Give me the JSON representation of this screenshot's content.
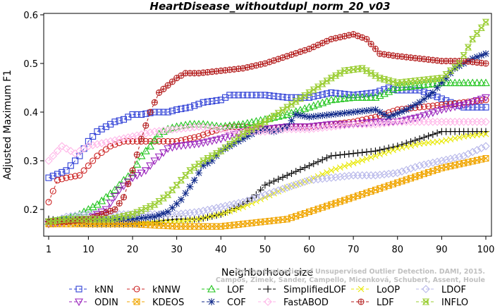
{
  "chart_data": {
    "type": "line",
    "title": "HeartDisease_withoutdupl_norm_20_v03",
    "xlabel": "Neighborhood size",
    "ylabel": "Adjusted Maximum F1",
    "xlim": [
      1,
      100
    ],
    "ylim": [
      0.15,
      0.6
    ],
    "x_ticks": [
      1,
      10,
      20,
      30,
      40,
      50,
      60,
      70,
      80,
      90,
      100
    ],
    "y_ticks": [
      0.2,
      0.3,
      0.4,
      0.5,
      0.6
    ],
    "grid": false,
    "legend_placement": "bottom",
    "watermark": [
      "Campos, Zimek, Sander, Campello, Micenková, Schubert, Assent, Houle",
      "On the Evaluation of Unsupervised Outlier Detection. DAMI, 2015."
    ],
    "series": [
      {
        "name": "kNN",
        "color": "#2e3fd6",
        "marker": "square",
        "line": "dashed",
        "points": [
          [
            1,
            0.265
          ],
          [
            5,
            0.28
          ],
          [
            8,
            0.31
          ],
          [
            10,
            0.34
          ],
          [
            12,
            0.36
          ],
          [
            14,
            0.37
          ],
          [
            16,
            0.38
          ],
          [
            18,
            0.385
          ],
          [
            20,
            0.395
          ],
          [
            22,
            0.395
          ],
          [
            25,
            0.4
          ],
          [
            28,
            0.4
          ],
          [
            30,
            0.405
          ],
          [
            33,
            0.41
          ],
          [
            36,
            0.42
          ],
          [
            40,
            0.425
          ],
          [
            42,
            0.435
          ],
          [
            45,
            0.435
          ],
          [
            50,
            0.435
          ],
          [
            55,
            0.43
          ],
          [
            60,
            0.43
          ],
          [
            65,
            0.44
          ],
          [
            70,
            0.435
          ],
          [
            75,
            0.44
          ],
          [
            78,
            0.45
          ],
          [
            80,
            0.445
          ],
          [
            85,
            0.445
          ],
          [
            88,
            0.435
          ],
          [
            92,
            0.42
          ],
          [
            95,
            0.41
          ],
          [
            100,
            0.41
          ]
        ]
      },
      {
        "name": "kNNW",
        "color": "#cc2424",
        "marker": "circle",
        "line": "dashed",
        "points": [
          [
            1,
            0.215
          ],
          [
            3,
            0.26
          ],
          [
            5,
            0.265
          ],
          [
            8,
            0.27
          ],
          [
            10,
            0.29
          ],
          [
            12,
            0.31
          ],
          [
            15,
            0.33
          ],
          [
            18,
            0.34
          ],
          [
            25,
            0.34
          ],
          [
            30,
            0.34
          ],
          [
            35,
            0.35
          ],
          [
            38,
            0.36
          ],
          [
            42,
            0.37
          ],
          [
            45,
            0.37
          ],
          [
            50,
            0.365
          ],
          [
            55,
            0.37
          ],
          [
            60,
            0.37
          ],
          [
            65,
            0.375
          ],
          [
            70,
            0.38
          ],
          [
            75,
            0.39
          ],
          [
            80,
            0.405
          ],
          [
            85,
            0.41
          ],
          [
            90,
            0.415
          ],
          [
            95,
            0.42
          ],
          [
            100,
            0.425
          ]
        ]
      },
      {
        "name": "LOF",
        "color": "#22c41e",
        "marker": "triangle-up",
        "line": "dashed",
        "points": [
          [
            1,
            0.175
          ],
          [
            5,
            0.18
          ],
          [
            8,
            0.19
          ],
          [
            10,
            0.2
          ],
          [
            12,
            0.21
          ],
          [
            14,
            0.225
          ],
          [
            16,
            0.24
          ],
          [
            18,
            0.26
          ],
          [
            20,
            0.275
          ],
          [
            22,
            0.31
          ],
          [
            24,
            0.33
          ],
          [
            26,
            0.355
          ],
          [
            28,
            0.365
          ],
          [
            30,
            0.37
          ],
          [
            33,
            0.375
          ],
          [
            36,
            0.375
          ],
          [
            40,
            0.37
          ],
          [
            45,
            0.375
          ],
          [
            50,
            0.385
          ],
          [
            55,
            0.395
          ],
          [
            60,
            0.41
          ],
          [
            65,
            0.425
          ],
          [
            70,
            0.43
          ],
          [
            75,
            0.43
          ],
          [
            80,
            0.45
          ],
          [
            85,
            0.455
          ],
          [
            90,
            0.46
          ],
          [
            95,
            0.46
          ],
          [
            100,
            0.46
          ]
        ]
      },
      {
        "name": "SimplifiedLOF",
        "color": "#000000",
        "marker": "plus",
        "line": "dashed",
        "points": [
          [
            1,
            0.18
          ],
          [
            5,
            0.175
          ],
          [
            10,
            0.17
          ],
          [
            15,
            0.17
          ],
          [
            20,
            0.17
          ],
          [
            25,
            0.175
          ],
          [
            30,
            0.18
          ],
          [
            35,
            0.18
          ],
          [
            40,
            0.19
          ],
          [
            45,
            0.21
          ],
          [
            48,
            0.23
          ],
          [
            50,
            0.25
          ],
          [
            55,
            0.27
          ],
          [
            60,
            0.29
          ],
          [
            65,
            0.31
          ],
          [
            70,
            0.315
          ],
          [
            75,
            0.32
          ],
          [
            80,
            0.33
          ],
          [
            85,
            0.345
          ],
          [
            90,
            0.36
          ],
          [
            95,
            0.36
          ],
          [
            100,
            0.36
          ]
        ]
      },
      {
        "name": "LoOP",
        "color": "#e8e800",
        "marker": "x",
        "line": "dashed",
        "points": [
          [
            1,
            0.17
          ],
          [
            10,
            0.17
          ],
          [
            20,
            0.17
          ],
          [
            30,
            0.175
          ],
          [
            35,
            0.18
          ],
          [
            40,
            0.19
          ],
          [
            45,
            0.205
          ],
          [
            50,
            0.225
          ],
          [
            55,
            0.245
          ],
          [
            60,
            0.26
          ],
          [
            65,
            0.28
          ],
          [
            70,
            0.295
          ],
          [
            75,
            0.31
          ],
          [
            80,
            0.325
          ],
          [
            85,
            0.335
          ],
          [
            90,
            0.34
          ],
          [
            95,
            0.35
          ],
          [
            100,
            0.355
          ]
        ]
      },
      {
        "name": "LDOF",
        "color": "#b8b8ea",
        "marker": "diamond",
        "line": "dashed",
        "points": [
          [
            1,
            0.17
          ],
          [
            5,
            0.185
          ],
          [
            10,
            0.19
          ],
          [
            15,
            0.19
          ],
          [
            20,
            0.19
          ],
          [
            25,
            0.19
          ],
          [
            30,
            0.19
          ],
          [
            35,
            0.195
          ],
          [
            40,
            0.205
          ],
          [
            45,
            0.215
          ],
          [
            50,
            0.23
          ],
          [
            55,
            0.245
          ],
          [
            60,
            0.26
          ],
          [
            65,
            0.265
          ],
          [
            70,
            0.27
          ],
          [
            75,
            0.27
          ],
          [
            80,
            0.275
          ],
          [
            85,
            0.29
          ],
          [
            90,
            0.3
          ],
          [
            95,
            0.31
          ],
          [
            100,
            0.33
          ]
        ]
      },
      {
        "name": "ODIN",
        "color": "#9922bb",
        "marker": "triangle-down",
        "line": "dashed",
        "points": [
          [
            1,
            0.17
          ],
          [
            5,
            0.175
          ],
          [
            10,
            0.18
          ],
          [
            14,
            0.2
          ],
          [
            17,
            0.24
          ],
          [
            20,
            0.265
          ],
          [
            23,
            0.28
          ],
          [
            25,
            0.3
          ],
          [
            28,
            0.325
          ],
          [
            30,
            0.33
          ],
          [
            35,
            0.335
          ],
          [
            40,
            0.345
          ],
          [
            45,
            0.36
          ],
          [
            50,
            0.365
          ],
          [
            55,
            0.37
          ],
          [
            60,
            0.37
          ],
          [
            65,
            0.375
          ],
          [
            70,
            0.375
          ],
          [
            75,
            0.38
          ],
          [
            80,
            0.38
          ],
          [
            85,
            0.39
          ],
          [
            90,
            0.405
          ],
          [
            95,
            0.415
          ],
          [
            100,
            0.43
          ]
        ]
      },
      {
        "name": "KDEOS",
        "color": "#f0a500",
        "marker": "square-x",
        "line": "dashed",
        "points": [
          [
            1,
            0.17
          ],
          [
            10,
            0.17
          ],
          [
            20,
            0.17
          ],
          [
            30,
            0.165
          ],
          [
            40,
            0.165
          ],
          [
            45,
            0.17
          ],
          [
            50,
            0.175
          ],
          [
            55,
            0.18
          ],
          [
            60,
            0.195
          ],
          [
            65,
            0.21
          ],
          [
            70,
            0.225
          ],
          [
            75,
            0.24
          ],
          [
            80,
            0.255
          ],
          [
            85,
            0.27
          ],
          [
            90,
            0.285
          ],
          [
            95,
            0.295
          ],
          [
            100,
            0.305
          ]
        ]
      },
      {
        "name": "COF",
        "color": "#102a8a",
        "marker": "asterisk",
        "line": "dashed",
        "points": [
          [
            1,
            0.175
          ],
          [
            5,
            0.18
          ],
          [
            10,
            0.18
          ],
          [
            15,
            0.18
          ],
          [
            20,
            0.18
          ],
          [
            25,
            0.185
          ],
          [
            28,
            0.195
          ],
          [
            31,
            0.22
          ],
          [
            34,
            0.26
          ],
          [
            36,
            0.29
          ],
          [
            38,
            0.3
          ],
          [
            40,
            0.32
          ],
          [
            42,
            0.33
          ],
          [
            45,
            0.345
          ],
          [
            48,
            0.36
          ],
          [
            50,
            0.365
          ],
          [
            52,
            0.36
          ],
          [
            55,
            0.37
          ],
          [
            57,
            0.395
          ],
          [
            60,
            0.39
          ],
          [
            65,
            0.395
          ],
          [
            70,
            0.4
          ],
          [
            75,
            0.405
          ],
          [
            78,
            0.39
          ],
          [
            82,
            0.405
          ],
          [
            85,
            0.42
          ],
          [
            88,
            0.44
          ],
          [
            90,
            0.46
          ],
          [
            93,
            0.49
          ],
          [
            97,
            0.51
          ],
          [
            100,
            0.52
          ]
        ]
      },
      {
        "name": "FastABOD",
        "color": "#ffb6e8",
        "marker": "diamond",
        "line": "dashed",
        "points": [
          [
            1,
            0.3
          ],
          [
            4,
            0.33
          ],
          [
            7,
            0.315
          ],
          [
            10,
            0.33
          ],
          [
            15,
            0.34
          ],
          [
            20,
            0.35
          ],
          [
            25,
            0.36
          ],
          [
            30,
            0.365
          ],
          [
            35,
            0.37
          ],
          [
            40,
            0.365
          ],
          [
            45,
            0.36
          ],
          [
            50,
            0.36
          ],
          [
            55,
            0.365
          ],
          [
            60,
            0.365
          ],
          [
            65,
            0.37
          ],
          [
            70,
            0.375
          ],
          [
            75,
            0.375
          ],
          [
            80,
            0.38
          ],
          [
            85,
            0.38
          ],
          [
            90,
            0.38
          ],
          [
            95,
            0.38
          ],
          [
            100,
            0.38
          ]
        ]
      },
      {
        "name": "LDF",
        "color": "#b41e1e",
        "marker": "circle-plus",
        "line": "dashed",
        "points": [
          [
            1,
            0.175
          ],
          [
            5,
            0.175
          ],
          [
            10,
            0.18
          ],
          [
            13,
            0.19
          ],
          [
            16,
            0.2
          ],
          [
            18,
            0.225
          ],
          [
            20,
            0.28
          ],
          [
            22,
            0.345
          ],
          [
            24,
            0.4
          ],
          [
            26,
            0.44
          ],
          [
            28,
            0.455
          ],
          [
            30,
            0.47
          ],
          [
            32,
            0.48
          ],
          [
            35,
            0.48
          ],
          [
            40,
            0.485
          ],
          [
            45,
            0.49
          ],
          [
            50,
            0.5
          ],
          [
            55,
            0.515
          ],
          [
            60,
            0.53
          ],
          [
            65,
            0.55
          ],
          [
            70,
            0.56
          ],
          [
            73,
            0.55
          ],
          [
            76,
            0.52
          ],
          [
            80,
            0.515
          ],
          [
            85,
            0.51
          ],
          [
            90,
            0.505
          ],
          [
            95,
            0.505
          ],
          [
            100,
            0.5
          ]
        ]
      },
      {
        "name": "INFLO",
        "color": "#9acd32",
        "marker": "hourglass",
        "line": "dashed",
        "points": [
          [
            1,
            0.175
          ],
          [
            5,
            0.18
          ],
          [
            10,
            0.18
          ],
          [
            15,
            0.18
          ],
          [
            20,
            0.19
          ],
          [
            25,
            0.21
          ],
          [
            28,
            0.23
          ],
          [
            30,
            0.25
          ],
          [
            33,
            0.28
          ],
          [
            36,
            0.3
          ],
          [
            40,
            0.32
          ],
          [
            45,
            0.355
          ],
          [
            50,
            0.38
          ],
          [
            55,
            0.41
          ],
          [
            60,
            0.44
          ],
          [
            65,
            0.47
          ],
          [
            68,
            0.485
          ],
          [
            72,
            0.49
          ],
          [
            76,
            0.47
          ],
          [
            80,
            0.46
          ],
          [
            85,
            0.465
          ],
          [
            90,
            0.47
          ],
          [
            94,
            0.5
          ],
          [
            97,
            0.55
          ],
          [
            100,
            0.585
          ]
        ]
      }
    ]
  }
}
